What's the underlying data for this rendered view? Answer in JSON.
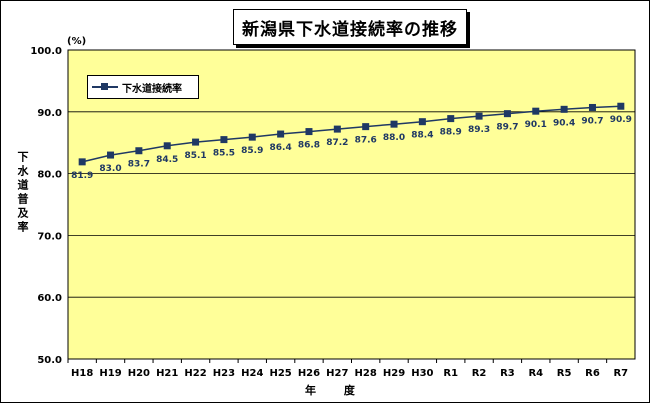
{
  "title": "新潟県下水道接続率の推移",
  "chart_data": {
    "type": "line",
    "categories": [
      "H18",
      "H19",
      "H20",
      "H21",
      "H22",
      "H23",
      "H24",
      "H25",
      "H26",
      "H27",
      "H28",
      "H29",
      "H30",
      "R1",
      "R2",
      "R3",
      "R4",
      "R5",
      "R6",
      "R7"
    ],
    "series": [
      {
        "name": "下水道接続率",
        "values": [
          81.9,
          83.0,
          83.7,
          84.5,
          85.1,
          85.5,
          85.9,
          86.4,
          86.8,
          87.2,
          87.6,
          88.0,
          88.4,
          88.9,
          89.3,
          89.7,
          90.1,
          90.4,
          90.7,
          90.9
        ],
        "color": "#1f3864"
      }
    ],
    "ylim": [
      50.0,
      100.0
    ],
    "yticks": [
      "50.0",
      "60.0",
      "70.0",
      "80.0",
      "90.0",
      "100.0"
    ],
    "ylabel": "下水道普及率",
    "yunit": "(%)",
    "xlabel": "年 度",
    "legend": "top-left",
    "grid": true,
    "plot_background": "#ffff99"
  }
}
